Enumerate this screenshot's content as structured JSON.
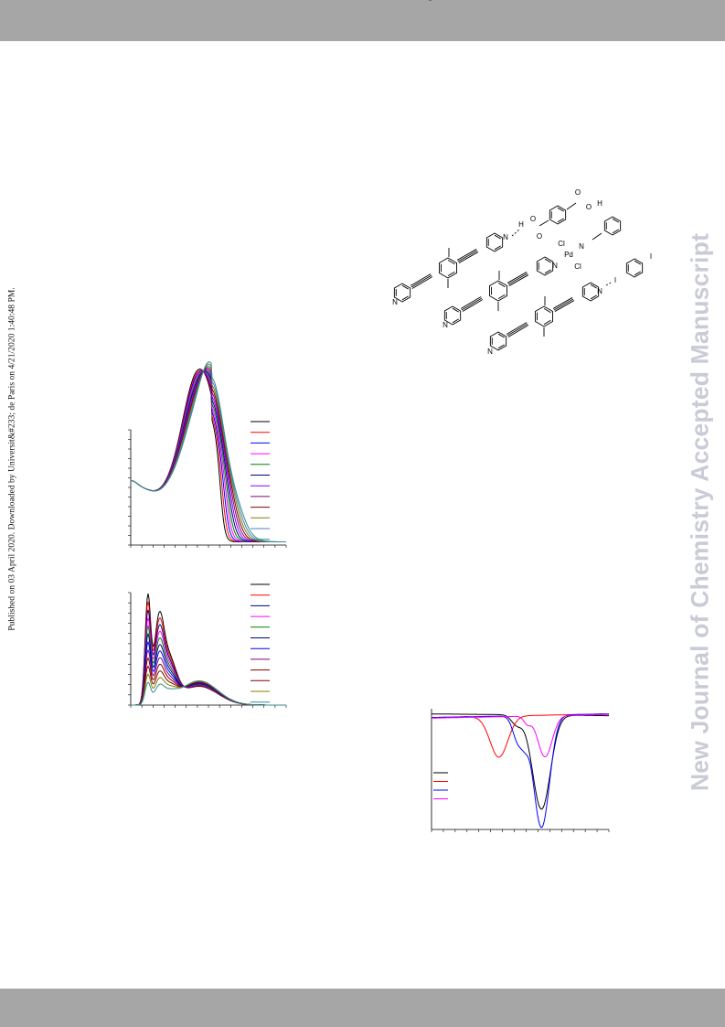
{
  "side_note": "Published on 03 April 2020. Downloaded by Universit&#233; de Paris on 4/21/2020 1:40:48 PM.",
  "watermark": "New Journal of Chemistry Accepted Manuscript",
  "structures": {
    "labels": [
      {
        "id": "n1",
        "text": "N"
      },
      {
        "id": "n2",
        "text": "N"
      },
      {
        "id": "n3",
        "text": "N"
      },
      {
        "id": "n4",
        "text": "N"
      },
      {
        "id": "n5",
        "text": "N"
      },
      {
        "id": "n6",
        "text": "N"
      },
      {
        "id": "npd",
        "text": "N"
      },
      {
        "id": "h1",
        "text": "H"
      },
      {
        "id": "o1",
        "text": "O"
      },
      {
        "id": "o2",
        "text": "O"
      },
      {
        "id": "o3",
        "text": "O"
      },
      {
        "id": "oh",
        "text": "O"
      },
      {
        "id": "h2",
        "text": "H"
      },
      {
        "id": "pd",
        "text": "Pd"
      },
      {
        "id": "cl1",
        "text": "Cl"
      },
      {
        "id": "cl2",
        "text": "Cl"
      },
      {
        "id": "i1",
        "text": "I"
      },
      {
        "id": "i2",
        "text": "I"
      }
    ]
  },
  "colors": {
    "band": "#a6a6a6",
    "watermark": "#c9cbd6",
    "black": "#000000",
    "red": "#ff0000",
    "blue": "#0000ff",
    "magenta": "#ff00ff",
    "green": "#008000",
    "navy": "#000080",
    "violet": "#8b00ff",
    "purple": "#800080",
    "maroon": "#800000",
    "olive": "#808000",
    "steel": "#4a7fc0",
    "teal": "#2f8f8f"
  },
  "chart_data": [
    {
      "type": "line",
      "series_count": 12,
      "legend": "top-right",
      "series_colors": [
        "black",
        "red",
        "blue",
        "magenta",
        "green",
        "navy",
        "violet",
        "purple",
        "maroon",
        "olive",
        "steel",
        "teal"
      ]
    },
    {
      "type": "line",
      "series_count": 12,
      "legend": "top-right",
      "series_colors": [
        "black",
        "red",
        "navy",
        "magenta",
        "green",
        "navy",
        "blue",
        "purple",
        "maroon",
        "maroon",
        "olive",
        "teal"
      ]
    },
    {
      "type": "line",
      "series_count": 4,
      "legend": "middle-left",
      "series_colors": [
        "black",
        "red",
        "blue",
        "magenta"
      ]
    }
  ]
}
